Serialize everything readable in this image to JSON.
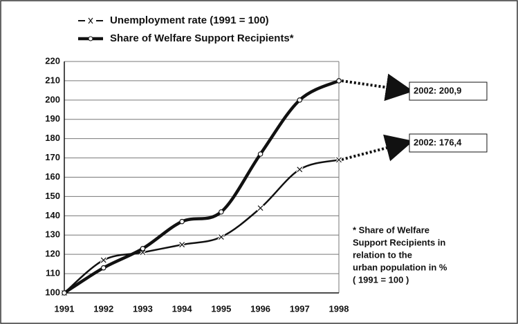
{
  "chart_data": {
    "type": "line",
    "categories": [
      "1991",
      "1992",
      "1993",
      "1994",
      "1995",
      "1996",
      "1997",
      "1998"
    ],
    "series": [
      {
        "name": "Unemployment rate (1991 = 100)",
        "color": "#111111",
        "marker": "x",
        "values": [
          100,
          117,
          121,
          125,
          129,
          144,
          164,
          169
        ]
      },
      {
        "name": "Share of Welfare Support Recipients*",
        "color": "#111111",
        "marker": "circle",
        "values": [
          100,
          113,
          123,
          137,
          142,
          172,
          200,
          210
        ]
      }
    ],
    "ylim": [
      100,
      220
    ],
    "yticks": [
      100,
      110,
      120,
      130,
      140,
      150,
      160,
      170,
      180,
      190,
      200,
      210,
      220
    ],
    "grid": true,
    "legend": "top-left",
    "annotations": [
      "2002:  200,9",
      "2002:  176,4"
    ],
    "footnote": [
      "* Share of Welfare",
      "Support Recipients in",
      "relation to the",
      "urban population in %",
      "( 1991 = 100 )"
    ]
  }
}
